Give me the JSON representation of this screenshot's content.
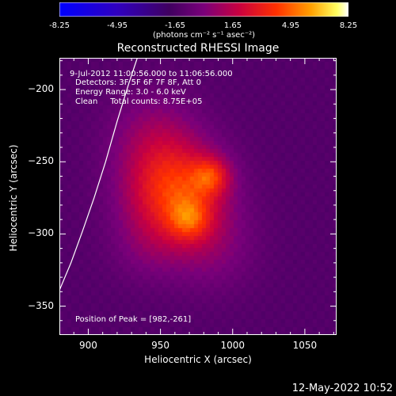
{
  "chart_data": {
    "type": "heatmap",
    "title": "Reconstructed RHESSI Image",
    "xlabel": "Heliocentric X (arcsec)",
    "ylabel": "Heliocentric Y (arcsec)",
    "xlim": [
      880,
      1072
    ],
    "ylim": [
      -370,
      -178
    ],
    "x_ticks": [
      900,
      950,
      1000,
      1050
    ],
    "y_ticks": [
      -200,
      -250,
      -300,
      -350
    ],
    "colorbar": {
      "min": -8.25,
      "max": 8.25,
      "ticks": [
        "-8.25",
        "-4.95",
        "-1.65",
        "1.65",
        "4.95",
        "8.25"
      ],
      "tick_values": [
        -8.25,
        -4.95,
        -1.65,
        1.65,
        4.95,
        8.25
      ],
      "unit_label": "(photons cm⁻² s⁻¹ asec⁻²)"
    },
    "annotations": {
      "time_range": "9-Jul-2012 11:00:56.000 to 11:06:56.000",
      "detectors": "Detectors: 3F 5F 6F 7F 8F, Att 0",
      "energy_range": "Energy Range: 3.0 - 6.0 keV",
      "clean_counts": "Clean     Total counts: 8.75E+05",
      "peak_position": "Position of Peak = [982,-261]"
    },
    "sources": [
      {
        "x": 985,
        "y": -260,
        "sigma": 9,
        "amp": 3.2
      },
      {
        "x": 970,
        "y": -290,
        "sigma": 10,
        "amp": 2.8
      },
      {
        "x": 960,
        "y": -270,
        "sigma": 24,
        "amp": 5.3
      },
      {
        "x": 945,
        "y": -230,
        "sigma": 22,
        "amp": 1.6
      },
      {
        "x": 985,
        "y": -310,
        "sigma": 22,
        "amp": 1.4
      },
      {
        "x": 940,
        "y": -310,
        "sigma": 18,
        "amp": 1.0
      }
    ],
    "background_level": -1.3,
    "limb_points": [
      [
        880,
        -339
      ],
      [
        888,
        -320
      ],
      [
        896,
        -298
      ],
      [
        904,
        -275
      ],
      [
        912,
        -250
      ],
      [
        920,
        -222
      ],
      [
        928,
        -196
      ],
      [
        934,
        -178
      ]
    ]
  },
  "footer": {
    "date": "12-May-2022 10:52"
  }
}
